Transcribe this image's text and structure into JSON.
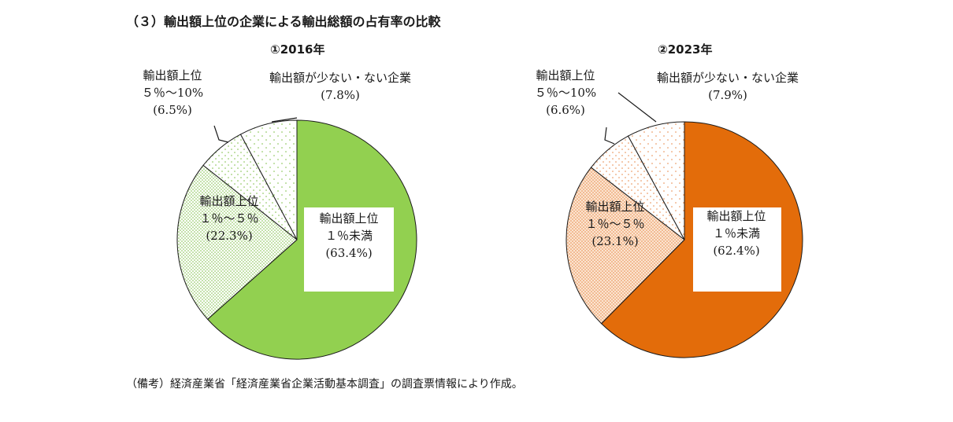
{
  "figure_title": "（３）輸出額上位の企業による輸出総額の占有率の比較",
  "note": "（備考）経済産業省「経済産業省企業活動基本調査」の調査票情報により作成。",
  "colors": {
    "green_main": "#92d050",
    "green_dots": "#7fbf47",
    "orange_main": "#e36c0a",
    "orange_light": "#fbe4d0",
    "orange_dots": "#e8894a"
  },
  "chart_data": [
    {
      "type": "pie",
      "title": "①2016年",
      "labels": [
        [
          "輸出額上位",
          "１％未満",
          "(63.4%)"
        ],
        [
          "輸出額上位",
          "１％～５％",
          "(22.3%)"
        ],
        [
          "輸出額上位",
          "５％～10%",
          "(6.5%)"
        ],
        [
          "輸出額が少ない・ない企業",
          "(7.8%)"
        ]
      ],
      "values": [
        63.4,
        22.3,
        6.5,
        7.8
      ]
    },
    {
      "type": "pie",
      "title": "②2023年",
      "labels": [
        [
          "輸出額上位",
          "１％未満",
          "(62.4%)"
        ],
        [
          "輸出額上位",
          "１％～５％",
          "(23.1%)"
        ],
        [
          "輸出額上位",
          "５％～10%",
          "(6.6%)"
        ],
        [
          "輸出額が少ない・ない企業",
          "(7.9%)"
        ]
      ],
      "values": [
        62.4,
        23.1,
        6.6,
        7.9
      ]
    }
  ]
}
